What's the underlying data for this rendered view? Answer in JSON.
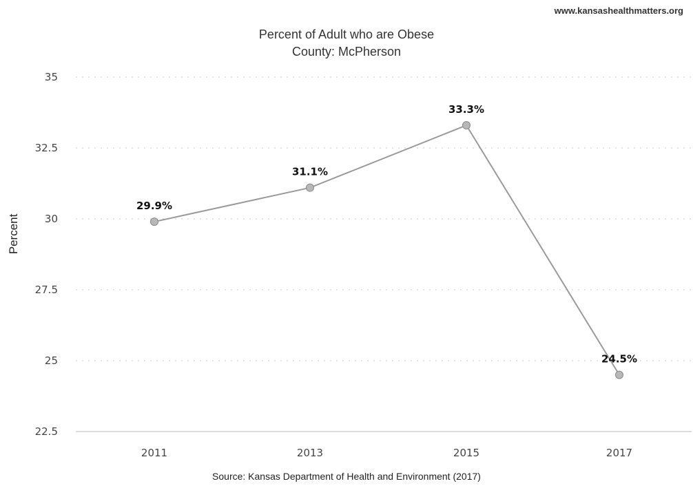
{
  "header": {
    "website": "www.kansashealthmatters.org"
  },
  "footer": {
    "source": "Source: Kansas Department of Health and Environment (2017)"
  },
  "chart_data": {
    "type": "line",
    "title_line1": "Percent of Adult who are Obese",
    "title_line2": "County: McPherson",
    "xlabel": "",
    "ylabel": "Percent",
    "categories": [
      "2011",
      "2013",
      "2015",
      "2017"
    ],
    "series": [
      {
        "values": [
          29.9,
          31.1,
          33.3,
          24.5
        ]
      }
    ],
    "data_labels": [
      "29.9%",
      "31.1%",
      "33.3%",
      "24.5%"
    ],
    "yticks": [
      "22.5",
      "25",
      "27.5",
      "30",
      "32.5",
      "35"
    ],
    "ylim": [
      22.5,
      35
    ],
    "grid": true,
    "legend": "none",
    "colors": {
      "line": "#9a9a9a",
      "marker": "#b8b8b8",
      "grid": "#c8c8c8"
    }
  }
}
